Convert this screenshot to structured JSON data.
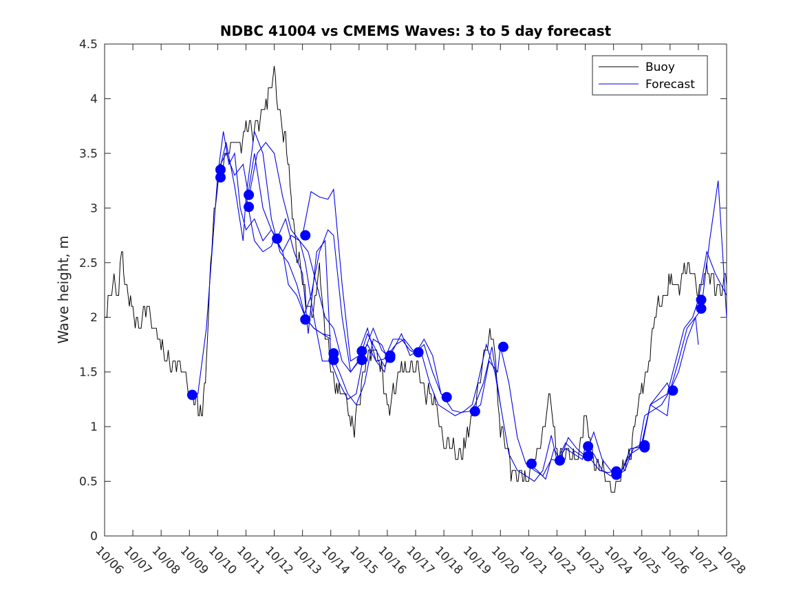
{
  "chart_data": {
    "type": "line",
    "title": "NDBC 41004 vs CMEMS Waves: 3 to 5 day forecast",
    "xlabel": "",
    "ylabel": "Wave height, m",
    "ylim": [
      0,
      4.5
    ],
    "yticks": [
      0,
      0.5,
      1,
      1.5,
      2,
      2.5,
      3,
      3.5,
      4,
      4.5
    ],
    "ytick_labels": [
      "0",
      "0.5",
      "1",
      "1.5",
      "2",
      "2.5",
      "3",
      "3.5",
      "4",
      "4.5"
    ],
    "xlim": [
      0,
      22
    ],
    "xtick_labels": [
      "10/06",
      "10/07",
      "10/08",
      "10/09",
      "10/10",
      "10/11",
      "10/12",
      "10/13",
      "10/14",
      "10/15",
      "10/16",
      "10/17",
      "10/18",
      "10/19",
      "10/20",
      "10/21",
      "10/22",
      "10/23",
      "10/24",
      "10/25",
      "10/26",
      "10/27",
      "10/28"
    ],
    "legend": {
      "location": "top-right",
      "entries": [
        "Buoy",
        "Forecast"
      ]
    },
    "colors": {
      "buoy": "#000000",
      "forecast": "#0000e6",
      "marker": "#0000ff"
    },
    "buoy": {
      "name": "Buoy",
      "x": [
        0,
        0.25,
        0.5,
        0.6,
        0.75,
        1,
        1.25,
        1.5,
        1.75,
        2,
        2.25,
        2.5,
        2.75,
        3,
        3.2,
        3.35,
        3.5,
        3.6,
        3.75,
        4,
        4.25,
        4.5,
        4.75,
        5,
        5.25,
        5.5,
        5.75,
        6,
        6.25,
        6.4,
        6.6,
        6.8,
        7,
        7.25,
        7.4,
        7.6,
        7.8,
        8,
        8.25,
        8.5,
        8.75,
        9,
        9.25,
        9.5,
        9.75,
        10,
        10.25,
        10.5,
        10.75,
        11,
        11.25,
        11.5,
        11.75,
        12,
        12.25,
        12.5,
        12.75,
        13,
        13.25,
        13.5,
        13.75,
        14,
        14.25,
        14.5,
        14.75,
        14.9,
        15,
        15.25,
        15.5,
        15.75,
        16,
        16.25,
        16.5,
        16.75,
        17,
        17.25,
        17.5,
        17.75,
        18,
        18.25,
        18.5,
        18.75,
        19,
        19.25,
        19.5,
        19.75,
        20,
        20.25,
        20.5,
        20.75,
        21,
        21.25,
        21.5,
        21.75,
        22
      ],
      "values": [
        2.0,
        2.3,
        2.2,
        2.7,
        2.2,
        2.1,
        1.9,
        2.1,
        2.0,
        1.7,
        1.6,
        1.6,
        1.5,
        1.4,
        1.2,
        1.1,
        1.3,
        1.5,
        2.6,
        3.2,
        3.5,
        3.6,
        3.5,
        3.8,
        3.6,
        3.9,
        4.0,
        4.2,
        3.8,
        3.6,
        3.1,
        2.6,
        2.3,
        2.1,
        2.0,
        2.5,
        1.9,
        1.5,
        1.4,
        1.2,
        1.0,
        1.2,
        1.6,
        1.8,
        1.5,
        1.2,
        1.3,
        1.5,
        1.6,
        1.5,
        1.4,
        1.3,
        1.1,
        0.9,
        0.8,
        0.75,
        0.85,
        1.0,
        1.45,
        1.7,
        1.9,
        1.0,
        0.7,
        0.6,
        0.5,
        0.55,
        0.6,
        0.7,
        1.0,
        1.2,
        0.8,
        0.75,
        0.7,
        0.8,
        1.0,
        0.8,
        0.6,
        0.5,
        0.45,
        0.5,
        0.7,
        1.0,
        1.3,
        1.7,
        2.0,
        2.2,
        2.3,
        2.2,
        2.5,
        2.4,
        2.3,
        2.4,
        2.3,
        2.3,
        2.3
      ]
    },
    "forecast": {
      "name": "Forecast",
      "series": [
        {
          "x": [
            3,
            3.3,
            3.6,
            4,
            4.2,
            4.4,
            4.6,
            4.8,
            5,
            5.3,
            5.6,
            5.9,
            6.1,
            6.3,
            6.5,
            6.8,
            7.1,
            7.4,
            7.7,
            8
          ],
          "values": [
            1.28,
            1.3,
            1.9,
            3.3,
            3.7,
            3.4,
            3.5,
            3.0,
            2.8,
            2.9,
            2.7,
            2.8,
            2.7,
            2.6,
            2.3,
            2.2,
            2.0,
            1.9,
            1.85,
            1.8
          ]
        },
        {
          "x": [
            4,
            4.3,
            4.6,
            4.9,
            5.1,
            5.4,
            5.7,
            6,
            6.3,
            6.6,
            6.9,
            7.2,
            7.5,
            7.8,
            8.1,
            8.4,
            8.7,
            9
          ],
          "values": [
            3.35,
            3.5,
            3.3,
            3.4,
            3.1,
            3.5,
            3.6,
            3.5,
            3.1,
            2.8,
            2.7,
            2.6,
            2.3,
            2.0,
            1.9,
            1.6,
            1.5,
            1.6
          ]
        },
        {
          "x": [
            4,
            4.3,
            4.6,
            4.9,
            5,
            5.3,
            5.6,
            5.9,
            6.2,
            6.5,
            6.8,
            7.1,
            7.4,
            7.7,
            8
          ],
          "values": [
            3.28,
            3.6,
            3.2,
            2.7,
            3.1,
            3.7,
            3.5,
            2.9,
            2.6,
            2.5,
            2.3,
            2.0,
            1.9,
            1.85,
            1.83
          ]
        },
        {
          "x": [
            5,
            5.3,
            5.6,
            5.9,
            6,
            6.3,
            6.6,
            6.9,
            7.1,
            7.4,
            7.7,
            8,
            8.3,
            8.6,
            8.9,
            9.2,
            9.5,
            9.8,
            10
          ],
          "values": [
            3.12,
            2.7,
            2.6,
            2.65,
            2.72,
            2.6,
            2.75,
            2.7,
            2.5,
            2.0,
            1.6,
            1.6,
            1.4,
            1.25,
            1.3,
            1.7,
            1.9,
            1.7,
            1.65
          ]
        },
        {
          "x": [
            5,
            5.3,
            5.6,
            5.9,
            6.1,
            6.4,
            6.7,
            7,
            7.2,
            7.5,
            7.8,
            8,
            8.3,
            8.6,
            8.9,
            9.2,
            9.5,
            9.8,
            10
          ],
          "values": [
            3.01,
            3.5,
            3.0,
            2.8,
            2.72,
            2.9,
            2.6,
            2.4,
            1.85,
            2.6,
            2.7,
            1.67,
            1.5,
            1.3,
            1.2,
            1.4,
            1.8,
            1.75,
            1.63
          ]
        },
        {
          "x": [
            7,
            7.3,
            7.6,
            7.9,
            8.1,
            8.4,
            8.7,
            9,
            9.3,
            9.6,
            9.9,
            10.2,
            10.5,
            10.8,
            11,
            11.3,
            11.6,
            11.9,
            12
          ],
          "values": [
            2.75,
            3.15,
            3.1,
            3.08,
            3.17,
            2.3,
            1.6,
            1.65,
            1.75,
            1.6,
            1.62,
            1.8,
            1.8,
            1.7,
            1.67,
            1.8,
            1.65,
            1.3,
            1.27
          ]
        },
        {
          "x": [
            7,
            7.3,
            7.6,
            7.9,
            8.1,
            8.4,
            8.7,
            9,
            9.3,
            9.6,
            9.9,
            10.2,
            10.5,
            10.8,
            11,
            11.3,
            11.6,
            11.9,
            12
          ],
          "values": [
            1.98,
            2.2,
            2.6,
            2.8,
            2.75,
            2.0,
            1.5,
            1.61,
            1.85,
            1.7,
            1.55,
            1.7,
            1.85,
            1.65,
            1.68,
            1.75,
            1.5,
            1.3,
            1.28
          ]
        },
        {
          "x": [
            9,
            9.3,
            9.6,
            9.9,
            10,
            10.3,
            10.6,
            10.9,
            11.2,
            11.5,
            11.8,
            12.1,
            12.4,
            12.7,
            13,
            13.2,
            13.5,
            13.8,
            14
          ],
          "values": [
            1.69,
            1.9,
            1.6,
            1.5,
            1.65,
            1.75,
            1.8,
            1.7,
            1.68,
            1.4,
            1.2,
            1.15,
            1.1,
            1.14,
            1.2,
            1.4,
            1.75,
            1.5,
            1.2
          ]
        },
        {
          "x": [
            12,
            12.3,
            12.6,
            12.9,
            13.1,
            13.4,
            13.7,
            14,
            14.3,
            14.6,
            14.9,
            15.2,
            15.5,
            15.8,
            16,
            16.3,
            16.6,
            16.9,
            17
          ],
          "values": [
            1.27,
            1.15,
            1.13,
            1.14,
            1.2,
            1.4,
            1.73,
            1.2,
            0.75,
            0.6,
            0.55,
            0.5,
            0.6,
            0.92,
            0.69,
            0.8,
            0.75,
            0.7,
            0.82
          ]
        },
        {
          "x": [
            13,
            13.3,
            13.6,
            13.9,
            14,
            14.3,
            14.6,
            14.9,
            15.2,
            15.5,
            15.8,
            16,
            16.3,
            16.6,
            16.9,
            17.2,
            17.5,
            17.8,
            18
          ],
          "values": [
            1.14,
            1.2,
            1.6,
            1.5,
            1.73,
            1.4,
            0.9,
            0.66,
            0.6,
            0.55,
            0.7,
            0.69,
            0.85,
            0.78,
            0.73,
            0.7,
            0.6,
            0.58,
            0.59
          ]
        },
        {
          "x": [
            15,
            15.3,
            15.6,
            15.9,
            16.1,
            16.4,
            16.7,
            17,
            17.3,
            17.6,
            17.9,
            18.1,
            18.4,
            18.7,
            19,
            19.3,
            19.6,
            19.9,
            20
          ],
          "values": [
            0.66,
            0.6,
            0.52,
            0.8,
            0.69,
            0.9,
            0.8,
            0.73,
            0.95,
            0.7,
            0.6,
            0.55,
            0.6,
            0.8,
            0.84,
            1.2,
            1.3,
            1.4,
            1.33
          ]
        },
        {
          "x": [
            17,
            17.3,
            17.6,
            17.9,
            18,
            18.3,
            18.6,
            18.9,
            19,
            19.3,
            19.6,
            19.9,
            20.2,
            20.5,
            20.8,
            21,
            21.3,
            21.6,
            22
          ],
          "values": [
            0.82,
            0.75,
            0.6,
            0.55,
            0.55,
            0.6,
            0.8,
            0.81,
            0.85,
            1.2,
            1.25,
            1.3,
            1.6,
            1.9,
            2.0,
            2.16,
            2.6,
            2.4,
            2.2
          ]
        },
        {
          "x": [
            18,
            18.3,
            18.6,
            18.9,
            19.1,
            19.4,
            19.7,
            20,
            20.3,
            20.6,
            20.9,
            21.1,
            21.4,
            21.7,
            22
          ],
          "values": [
            0.57,
            0.6,
            0.75,
            0.8,
            1.1,
            1.15,
            1.2,
            1.33,
            1.5,
            1.8,
            2.0,
            2.07,
            2.7,
            3.25,
            2.0
          ]
        },
        {
          "x": [
            19,
            19.3,
            19.6,
            19.9,
            20,
            20.3,
            20.6,
            20.9,
            21
          ],
          "values": [
            0.81,
            1.2,
            1.15,
            1.1,
            1.33,
            1.6,
            1.9,
            2.0,
            1.75
          ]
        }
      ]
    },
    "markers": {
      "x": [
        3.1,
        4.1,
        4.1,
        5.1,
        5.1,
        6.1,
        7.1,
        7.1,
        8.1,
        8.1,
        9.1,
        9.1,
        10.1,
        10.1,
        11.1,
        12.1,
        13.1,
        14.1,
        15.1,
        16.1,
        17.1,
        17.1,
        18.1,
        18.1,
        19.1,
        19.1,
        20.1,
        21.1,
        21.1
      ],
      "values": [
        1.29,
        3.35,
        3.28,
        3.12,
        3.01,
        2.72,
        2.75,
        1.98,
        1.67,
        1.61,
        1.69,
        1.61,
        1.65,
        1.63,
        1.68,
        1.27,
        1.14,
        1.73,
        0.66,
        0.69,
        0.82,
        0.73,
        0.59,
        0.56,
        0.81,
        0.83,
        1.33,
        2.16,
        2.08
      ]
    }
  }
}
